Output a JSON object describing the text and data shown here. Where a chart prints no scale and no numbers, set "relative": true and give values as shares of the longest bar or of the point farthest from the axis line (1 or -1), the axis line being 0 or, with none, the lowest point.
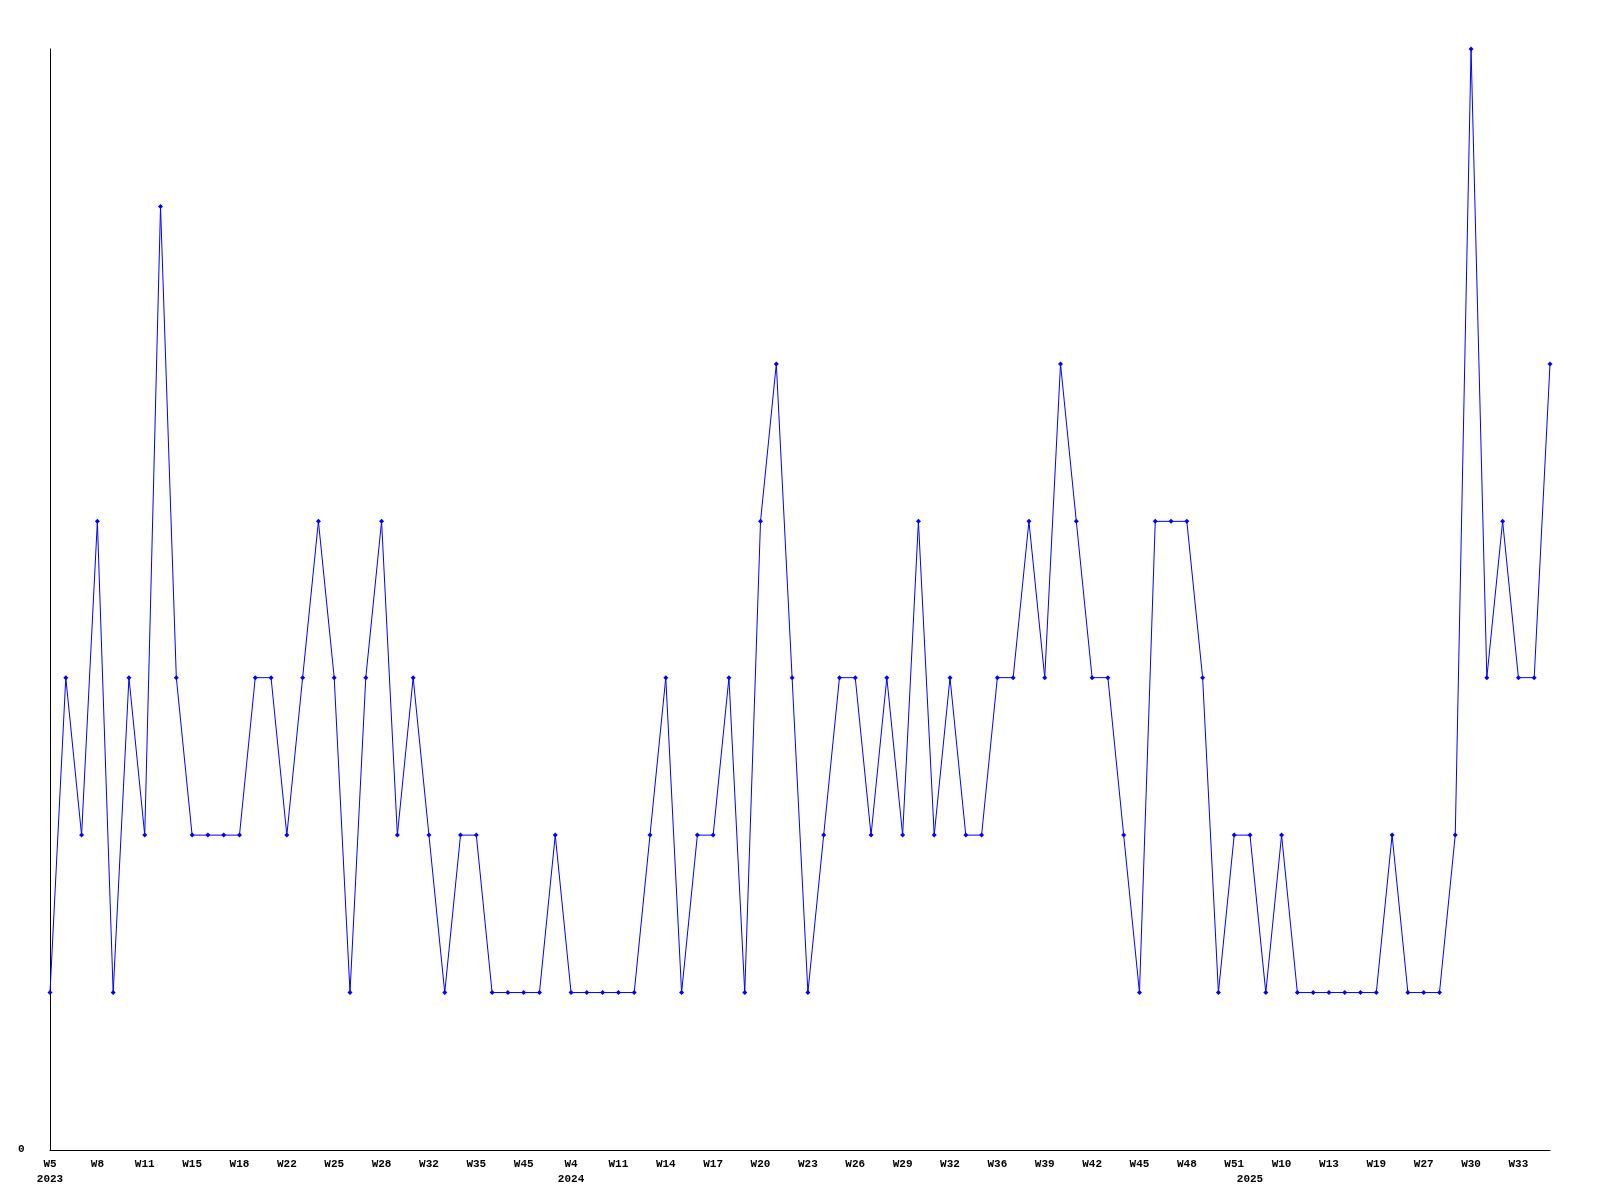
{
  "chart_data": {
    "type": "line",
    "relative": true,
    "marker": "diamond",
    "color": "#0000ff",
    "annotations": [
      "0"
    ],
    "categories": [
      "W5\n2023",
      null,
      null,
      "W8",
      null,
      null,
      "W11",
      null,
      null,
      "W15",
      null,
      null,
      "W18",
      null,
      null,
      "W22",
      null,
      null,
      "W25",
      null,
      null,
      "W28",
      null,
      null,
      "W32",
      null,
      null,
      "W35",
      null,
      null,
      "W45",
      null,
      null,
      "W4\n2024",
      null,
      null,
      "W11",
      null,
      null,
      "W14",
      null,
      null,
      "W17",
      null,
      null,
      "W20",
      null,
      null,
      "W23",
      null,
      null,
      "W26",
      null,
      null,
      "W29",
      null,
      null,
      "W32",
      null,
      null,
      "W36",
      null,
      null,
      "W39",
      null,
      null,
      "W42",
      null,
      null,
      "W45",
      null,
      null,
      "W48",
      null,
      null,
      "W51",
      "\n2025",
      null,
      "W10",
      null,
      null,
      "W13",
      null,
      null,
      "W19",
      null,
      null,
      "W27",
      null,
      null,
      "W30",
      null,
      null,
      "W33",
      null,
      null
    ],
    "values": [
      0.143,
      0.429,
      0.286,
      0.571,
      0.143,
      0.429,
      0.286,
      0.857,
      0.429,
      0.286,
      0.286,
      0.286,
      0.286,
      0.429,
      0.429,
      0.286,
      0.429,
      0.571,
      0.429,
      0.143,
      0.429,
      0.571,
      0.286,
      0.429,
      0.286,
      0.143,
      0.286,
      0.286,
      0.143,
      0.143,
      0.143,
      0.143,
      0.286,
      0.143,
      0.143,
      0.143,
      0.143,
      0.143,
      0.286,
      0.429,
      0.143,
      0.286,
      0.286,
      0.429,
      0.143,
      0.571,
      0.714,
      0.429,
      0.143,
      0.286,
      0.429,
      0.429,
      0.286,
      0.429,
      0.286,
      0.571,
      0.286,
      0.429,
      0.286,
      0.286,
      0.429,
      0.429,
      0.571,
      0.429,
      0.714,
      0.571,
      0.429,
      0.429,
      0.286,
      0.143,
      0.571,
      0.571,
      0.571,
      0.429,
      0.143,
      0.286,
      0.286,
      0.143,
      0.286,
      0.143,
      0.143,
      0.143,
      0.143,
      0.143,
      0.143,
      0.286,
      0.143,
      0.143,
      0.143,
      0.286,
      1,
      0.429,
      0.571,
      0.429,
      0.429,
      0.714
    ]
  }
}
